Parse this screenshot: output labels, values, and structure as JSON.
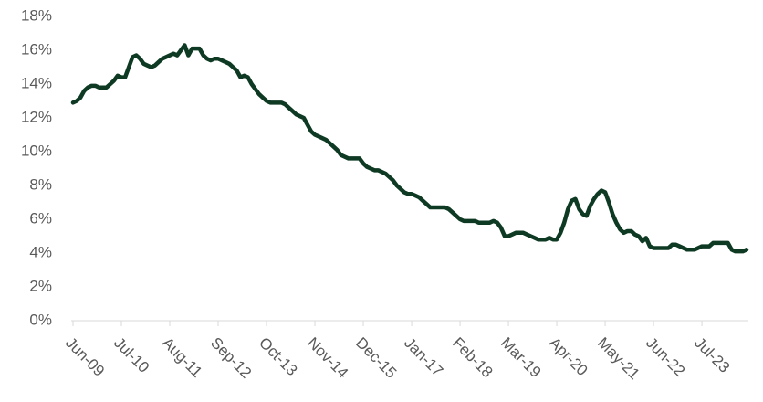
{
  "chart_data": {
    "type": "line",
    "categories": [
      "Jun-09",
      null,
      null,
      null,
      null,
      null,
      null,
      null,
      null,
      null,
      null,
      null,
      null,
      "Jul-10",
      null,
      null,
      null,
      null,
      null,
      null,
      null,
      null,
      null,
      null,
      null,
      null,
      "Aug-11",
      null,
      null,
      null,
      null,
      null,
      null,
      null,
      null,
      null,
      null,
      null,
      null,
      "Sep-12",
      null,
      null,
      null,
      null,
      null,
      null,
      null,
      null,
      null,
      null,
      null,
      null,
      "Oct-13",
      null,
      null,
      null,
      null,
      null,
      null,
      null,
      null,
      null,
      null,
      null,
      null,
      "Nov-14",
      null,
      null,
      null,
      null,
      null,
      null,
      null,
      null,
      null,
      null,
      null,
      null,
      "Dec-15",
      null,
      null,
      null,
      null,
      null,
      null,
      null,
      null,
      null,
      null,
      null,
      null,
      "Jan-17",
      null,
      null,
      null,
      null,
      null,
      null,
      null,
      null,
      null,
      null,
      null,
      null,
      "Feb-18",
      null,
      null,
      null,
      null,
      null,
      null,
      null,
      null,
      null,
      null,
      null,
      null,
      "Mar-19",
      null,
      null,
      null,
      null,
      null,
      null,
      null,
      null,
      null,
      null,
      null,
      null,
      "Apr-20",
      null,
      null,
      null,
      null,
      null,
      null,
      null,
      null,
      null,
      null,
      null,
      null,
      "May-21",
      null,
      null,
      null,
      null,
      null,
      null,
      null,
      null,
      null,
      null,
      null,
      null,
      "Jun-22",
      null,
      null,
      null,
      null,
      null,
      null,
      null,
      null,
      null,
      null,
      null,
      null,
      "Jul-23",
      null,
      null,
      null,
      null,
      null,
      null,
      null,
      null,
      null,
      null,
      null,
      null
    ],
    "values": [
      12.9,
      13.0,
      13.2,
      13.6,
      13.8,
      13.9,
      13.9,
      13.8,
      13.8,
      13.8,
      14.0,
      14.2,
      14.5,
      14.4,
      14.4,
      15.0,
      15.6,
      15.7,
      15.5,
      15.2,
      15.1,
      15.0,
      15.1,
      15.3,
      15.5,
      15.6,
      15.7,
      15.8,
      15.7,
      16.0,
      16.3,
      15.7,
      16.1,
      16.1,
      16.1,
      15.7,
      15.5,
      15.4,
      15.5,
      15.5,
      15.4,
      15.3,
      15.2,
      15.0,
      14.8,
      14.4,
      14.5,
      14.4,
      14.0,
      13.7,
      13.4,
      13.2,
      13.0,
      12.9,
      12.9,
      12.9,
      12.9,
      12.8,
      12.6,
      12.4,
      12.2,
      12.1,
      12.0,
      11.6,
      11.2,
      11.0,
      10.9,
      10.8,
      10.7,
      10.5,
      10.3,
      10.1,
      9.8,
      9.7,
      9.6,
      9.6,
      9.6,
      9.6,
      9.3,
      9.1,
      9.0,
      8.9,
      8.9,
      8.8,
      8.7,
      8.5,
      8.3,
      8.0,
      7.8,
      7.6,
      7.5,
      7.5,
      7.4,
      7.3,
      7.1,
      6.9,
      6.7,
      6.7,
      6.7,
      6.7,
      6.7,
      6.6,
      6.4,
      6.2,
      6.0,
      5.9,
      5.9,
      5.9,
      5.9,
      5.8,
      5.8,
      5.8,
      5.8,
      5.9,
      5.8,
      5.5,
      5.0,
      5.0,
      5.1,
      5.2,
      5.2,
      5.2,
      5.1,
      5.0,
      4.9,
      4.8,
      4.8,
      4.8,
      4.9,
      4.8,
      4.8,
      5.2,
      5.8,
      6.6,
      7.1,
      7.2,
      6.6,
      6.3,
      6.2,
      6.8,
      7.2,
      7.5,
      7.7,
      7.6,
      7.0,
      6.3,
      5.8,
      5.4,
      5.2,
      5.3,
      5.3,
      5.1,
      5.0,
      4.7,
      4.9,
      4.4,
      4.3,
      4.3,
      4.3,
      4.3,
      4.3,
      4.5,
      4.5,
      4.4,
      4.3,
      4.2,
      4.2,
      4.2,
      4.3,
      4.4,
      4.4,
      4.4,
      4.6,
      4.6,
      4.6,
      4.6,
      4.6,
      4.2,
      4.1,
      4.1,
      4.1,
      4.2
    ],
    "color": "#0e3a24",
    "ylim": [
      0,
      18
    ],
    "yticks": [
      {
        "value": 0,
        "label": "0%"
      },
      {
        "value": 2,
        "label": "2%"
      },
      {
        "value": 4,
        "label": "4%"
      },
      {
        "value": 6,
        "label": "6%"
      },
      {
        "value": 8,
        "label": "8%"
      },
      {
        "value": 10,
        "label": "10%"
      },
      {
        "value": 12,
        "label": "12%"
      },
      {
        "value": 14,
        "label": "14%"
      },
      {
        "value": 16,
        "label": "16%"
      },
      {
        "value": 18,
        "label": "18%"
      }
    ],
    "grid": false
  }
}
